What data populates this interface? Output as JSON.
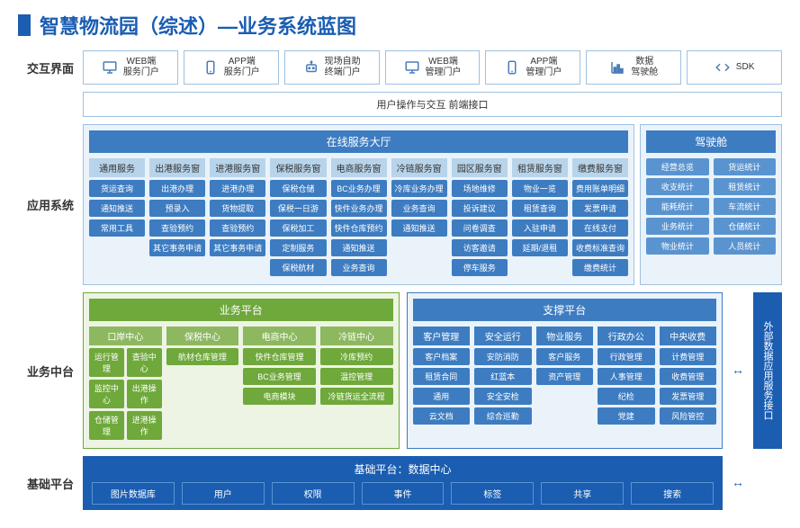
{
  "title": "智慧物流园（综述）—业务系统蓝图",
  "rows": {
    "r1": "交互界面",
    "r2": "应用系统",
    "r3": "业务中台",
    "r4": "基础平台"
  },
  "interface": [
    {
      "icon": "monitor",
      "l1": "WEB端",
      "l2": "服务门户"
    },
    {
      "icon": "phone",
      "l1": "APP端",
      "l2": "服务门户"
    },
    {
      "icon": "robot",
      "l1": "现场自助",
      "l2": "终端门户"
    },
    {
      "icon": "monitor",
      "l1": "WEB端",
      "l2": "管理门户"
    },
    {
      "icon": "phone",
      "l1": "APP端",
      "l2": "管理门户"
    },
    {
      "icon": "chart",
      "l1": "数据",
      "l2": "驾驶舱"
    },
    {
      "icon": "code",
      "l1": "",
      "l2": "SDK"
    }
  ],
  "banner": "用户操作与交互  前端接口",
  "hall": {
    "title": "在线服务大厅",
    "cols": [
      {
        "h": "通用服务",
        "items": [
          "货运查询",
          "通知推送",
          "常用工具"
        ]
      },
      {
        "h": "出港服务窗",
        "items": [
          "出港办理",
          "预录入",
          "查验预约",
          "其它事务申请"
        ]
      },
      {
        "h": "进港服务窗",
        "items": [
          "进港办理",
          "货物提取",
          "查验预约",
          "其它事务申请"
        ]
      },
      {
        "h": "保税服务窗",
        "items": [
          "保税仓储",
          "保税一日游",
          "保税加工",
          "定制服务",
          "保税航材"
        ]
      },
      {
        "h": "电商服务窗",
        "items": [
          "BC业务办理",
          "快件业务办理",
          "快件仓库预约",
          "通知推送",
          "业务查询"
        ]
      },
      {
        "h": "冷链服务窗",
        "items": [
          "冷库业务办理",
          "业务查询",
          "通知推送"
        ]
      },
      {
        "h": "园区服务窗",
        "items": [
          "场地维修",
          "投诉建议",
          "问卷调查",
          "访客邀请",
          "停车服务"
        ]
      },
      {
        "h": "租赁服务窗",
        "items": [
          "物业一览",
          "租赁查询",
          "入驻申请",
          "延期/退租"
        ]
      },
      {
        "h": "缴费服务窗",
        "items": [
          "费用账单明细",
          "发票申请",
          "在线支付",
          "收费标准查询",
          "缴费统计"
        ]
      }
    ]
  },
  "cockpit": {
    "title": "驾驶舱",
    "left": [
      "经营总览",
      "收支统计",
      "能耗统计",
      "业务统计",
      "物业统计"
    ],
    "right": [
      "货运统计",
      "租赁统计",
      "车流统计",
      "仓储统计",
      "人员统计"
    ]
  },
  "bizPlatform": {
    "title": "业务平台",
    "cols": [
      {
        "h": "口岸中心",
        "items": [
          "运行管理",
          "查验中心",
          "监控中心",
          "出港操作",
          "仓储管理",
          "进港操作"
        ]
      },
      {
        "h": "保税中心",
        "items": [
          "航材仓库管理"
        ]
      },
      {
        "h": "电商中心",
        "items": [
          "快件仓库管理",
          "BC业务管理",
          "电商模块"
        ]
      },
      {
        "h": "冷链中心",
        "items": [
          "冷库预约",
          "温控管理",
          "冷链货运全流程"
        ]
      }
    ]
  },
  "supportPlatform": {
    "title": "支撑平台",
    "cols": [
      {
        "h": "客户管理",
        "items": [
          "客户档案",
          "租赁合同",
          "通用",
          "云文档"
        ]
      },
      {
        "h": "安全运行",
        "items": [
          "安防消防",
          "红蓝本",
          "安全安检",
          "综合巡勤"
        ]
      },
      {
        "h": "物业服务",
        "items": [
          "客户服务",
          "资产管理"
        ]
      },
      {
        "h": "行政办公",
        "items": [
          "行政管理",
          "人事管理",
          "纪检",
          "党建"
        ]
      },
      {
        "h": "中央收费",
        "items": [
          "计费管理",
          "收费管理",
          "发票管理",
          "风险管控"
        ]
      }
    ]
  },
  "basePlatform": {
    "title": "基础平台：数据中心",
    "items": [
      "图片数据库",
      "用户",
      "权限",
      "事件",
      "标签",
      "共享",
      "搜索"
    ]
  },
  "sideLabel": "外部数据应用服务接口"
}
